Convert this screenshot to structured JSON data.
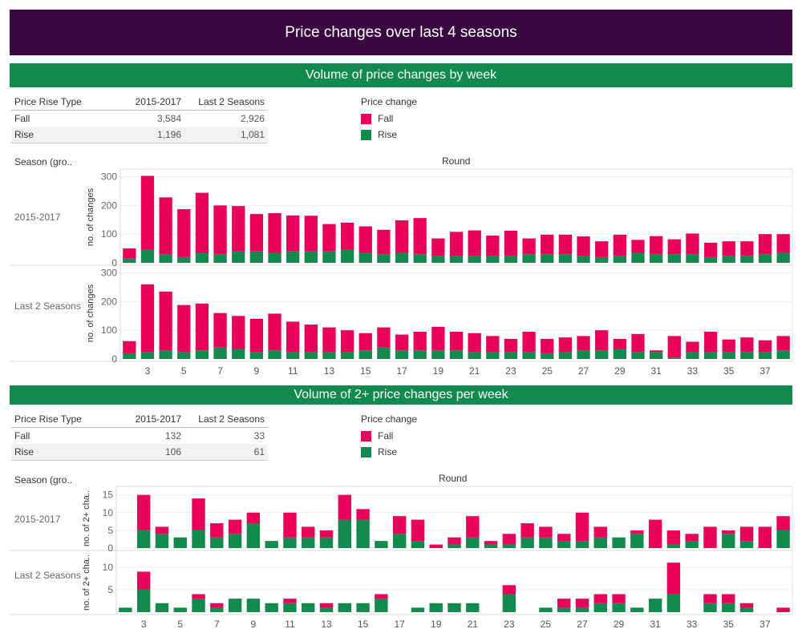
{
  "title": "Price changes over last 4 seasons",
  "colors": {
    "fall": "#e8005a",
    "rise": "#118a4e",
    "header": "#3a0840",
    "section": "#118a4e"
  },
  "sections": [
    {
      "heading": "Volume of price changes by week",
      "table": {
        "headers": [
          "Price Rise Type",
          "2015-2017",
          "Last 2 Seasons"
        ],
        "rows": [
          {
            "type": "Fall",
            "a": "3,584",
            "b": "2,926"
          },
          {
            "type": "Rise",
            "a": "1,196",
            "b": "1,081"
          }
        ]
      },
      "legend": {
        "title": "Price change",
        "fall": "Fall",
        "rise": "Rise"
      },
      "season_header": "Season (gro..",
      "round_header": "Round"
    },
    {
      "heading": "Volume of 2+ price changes per week",
      "table": {
        "headers": [
          "Price Rise Type",
          "2015-2017",
          "Last 2 Seasons"
        ],
        "rows": [
          {
            "type": "Fall",
            "a": "132",
            "b": "33"
          },
          {
            "type": "Rise",
            "a": "106",
            "b": "61"
          }
        ]
      },
      "legend": {
        "title": "Price change",
        "fall": "Fall",
        "rise": "Rise"
      },
      "season_header": "Season (gro..",
      "round_header": "Round"
    }
  ],
  "chart_data": [
    {
      "type": "bar",
      "stacked": true,
      "title": "Volume of price changes by week",
      "xlabel": "Round",
      "ylabel": "no. of changes",
      "ylim": [
        0,
        310
      ],
      "yticks": [
        0,
        100,
        200,
        300
      ],
      "rounds": [
        2,
        3,
        4,
        5,
        6,
        7,
        8,
        9,
        10,
        11,
        12,
        13,
        14,
        15,
        16,
        17,
        18,
        19,
        20,
        21,
        22,
        23,
        24,
        25,
        26,
        27,
        28,
        29,
        30,
        31,
        32,
        33,
        34,
        35,
        36,
        37,
        38
      ],
      "xtick_labels": [
        3,
        5,
        7,
        9,
        11,
        13,
        15,
        17,
        19,
        21,
        23,
        25,
        27,
        29,
        31,
        33,
        35,
        37
      ],
      "panels": [
        {
          "label": "2015-2017",
          "series": [
            {
              "name": "Rise",
              "values": [
                15,
                45,
                30,
                20,
                35,
                30,
                40,
                40,
                35,
                40,
                40,
                40,
                45,
                35,
                30,
                35,
                30,
                25,
                25,
                25,
                25,
                25,
                30,
                30,
                30,
                25,
                20,
                25,
                35,
                30,
                30,
                30,
                20,
                25,
                25,
                30,
                35
              ]
            },
            {
              "name": "Fall",
              "values": [
                35,
                258,
                198,
                167,
                209,
                170,
                158,
                130,
                138,
                125,
                124,
                95,
                95,
                92,
                85,
                113,
                126,
                60,
                83,
                88,
                70,
                87,
                55,
                68,
                68,
                67,
                55,
                73,
                45,
                63,
                52,
                72,
                50,
                50,
                50,
                70,
                65
              ]
            }
          ]
        },
        {
          "label": "Last 2 Seasons",
          "series": [
            {
              "name": "Rise",
              "values": [
                20,
                25,
                30,
                25,
                30,
                40,
                35,
                25,
                30,
                25,
                25,
                25,
                25,
                30,
                40,
                30,
                30,
                30,
                30,
                25,
                25,
                25,
                25,
                20,
                25,
                30,
                30,
                35,
                25,
                25,
                5,
                25,
                25,
                25,
                25,
                25,
                30
              ]
            },
            {
              "name": "Fall",
              "values": [
                42,
                235,
                205,
                163,
                163,
                120,
                115,
                115,
                128,
                105,
                95,
                85,
                75,
                60,
                70,
                55,
                65,
                82,
                65,
                65,
                55,
                45,
                70,
                50,
                50,
                50,
                70,
                35,
                62,
                5,
                75,
                35,
                70,
                43,
                50,
                40,
                50
              ]
            }
          ]
        }
      ]
    },
    {
      "type": "bar",
      "stacked": true,
      "title": "Volume of 2+ price changes per week",
      "xlabel": "Round",
      "ylabel": "no. of 2+ cha..",
      "rounds": [
        2,
        3,
        4,
        5,
        6,
        7,
        8,
        9,
        10,
        11,
        12,
        13,
        14,
        15,
        16,
        17,
        18,
        19,
        20,
        21,
        22,
        23,
        24,
        25,
        26,
        27,
        28,
        29,
        30,
        31,
        32,
        33,
        34,
        35,
        36,
        37,
        38
      ],
      "xtick_labels": [
        3,
        5,
        7,
        9,
        11,
        13,
        15,
        17,
        19,
        21,
        23,
        25,
        27,
        29,
        31,
        33,
        35,
        37
      ],
      "panels": [
        {
          "label": "2015-2017",
          "ylim": [
            0,
            16.5
          ],
          "yticks": [
            0,
            5,
            10,
            15
          ],
          "series": [
            {
              "name": "Rise",
              "values": [
                0,
                5,
                4,
                3,
                5,
                3,
                4,
                7,
                2,
                3,
                3,
                3,
                8,
                8,
                2,
                4,
                2,
                0,
                1,
                3,
                1,
                1,
                3,
                3,
                2,
                2,
                3,
                3,
                4,
                0,
                1,
                2,
                0,
                4,
                2,
                0,
                5
              ]
            },
            {
              "name": "Fall",
              "values": [
                0,
                10,
                2,
                0,
                9,
                4,
                4,
                3,
                0,
                7,
                3,
                2,
                7,
                3,
                0,
                5,
                6,
                1,
                2,
                6,
                1,
                3,
                4,
                3,
                2,
                8,
                3,
                0,
                1,
                8,
                4,
                2,
                6,
                1,
                4,
                6,
                4
              ]
            }
          ]
        },
        {
          "label": "Last 2 Seasons",
          "ylim": [
            0,
            13
          ],
          "yticks": [
            5,
            10
          ],
          "series": [
            {
              "name": "Rise",
              "values": [
                1,
                5,
                2,
                1,
                3,
                1,
                3,
                3,
                2,
                2,
                2,
                1,
                2,
                2,
                3,
                0,
                1,
                2,
                2,
                2,
                0,
                4,
                0,
                1,
                1,
                1,
                2,
                2,
                1,
                3,
                4,
                0,
                2,
                2,
                1,
                0,
                0
              ]
            },
            {
              "name": "Fall",
              "values": [
                0,
                4,
                0,
                0,
                1,
                1,
                0,
                0,
                0,
                1,
                0,
                1,
                0,
                0,
                1,
                0,
                0,
                0,
                0,
                0,
                0,
                2,
                0,
                0,
                2,
                2,
                2,
                2,
                0,
                0,
                7,
                0,
                2,
                2,
                1,
                0,
                1
              ]
            }
          ]
        }
      ]
    }
  ]
}
